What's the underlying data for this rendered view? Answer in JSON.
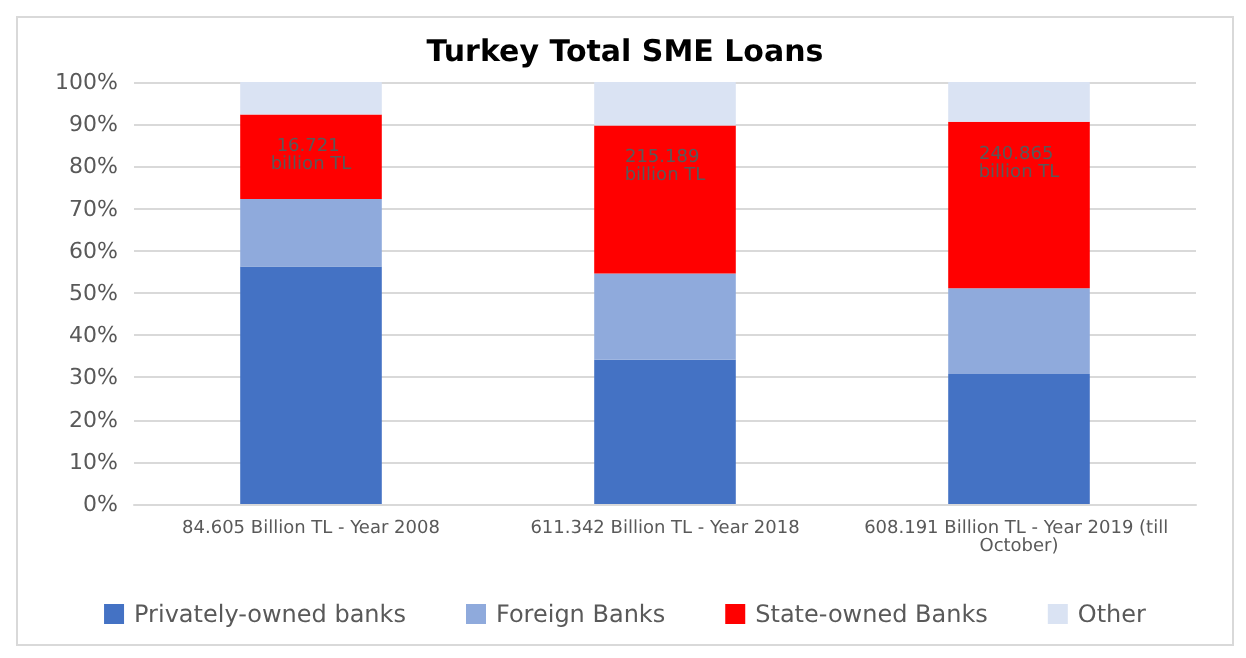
{
  "chart_data": {
    "type": "bar",
    "title": "Turkey Total SME Loans",
    "stacked": true,
    "categories": [
      "84.605 Billion TL - Year 2008",
      "611.342 Billion TL - Year 2018",
      "608.191 Billion TL - Year 2019 (till October)"
    ],
    "series": [
      {
        "name": "Privately-owned banks",
        "color": "#4472c4",
        "values": [
          56.3,
          34.2,
          30.8
        ]
      },
      {
        "name": "Foreign Banks",
        "color": "#8faadc",
        "values": [
          16.0,
          20.4,
          20.3
        ]
      },
      {
        "name": "State-owned Banks",
        "color": "#ff0000",
        "values": [
          20.0,
          35.1,
          39.5
        ]
      },
      {
        "name": "Other",
        "color": "#dae3f3",
        "values": [
          7.7,
          10.3,
          9.4
        ]
      }
    ],
    "ylim": [
      0,
      100
    ],
    "yticks": [
      {
        "value": 0,
        "label": "0%"
      },
      {
        "value": 10,
        "label": "10%"
      },
      {
        "value": 20,
        "label": "20%"
      },
      {
        "value": 30,
        "label": "30%"
      },
      {
        "value": 40,
        "label": "40%"
      },
      {
        "value": 50,
        "label": "50%"
      },
      {
        "value": 60,
        "label": "60%"
      },
      {
        "value": 70,
        "label": "70%"
      },
      {
        "value": 80,
        "label": "80%"
      },
      {
        "value": 90,
        "label": "90%"
      },
      {
        "value": 100,
        "label": "100%"
      }
    ],
    "annotations": [
      {
        "text": "16.721 billion TL",
        "x": "84.605 Billion TL - Year 2008",
        "y": 92.3
      },
      {
        "text": "215.189 billion TL",
        "x": "611.342 Billion TL - Year 2018",
        "y": 89.7
      },
      {
        "text": "240.865 billion TL",
        "x": "608.191 Billion TL - Year 2019 (till October)",
        "y": 90.6
      }
    ],
    "grid": "y",
    "legend": "bottom"
  }
}
